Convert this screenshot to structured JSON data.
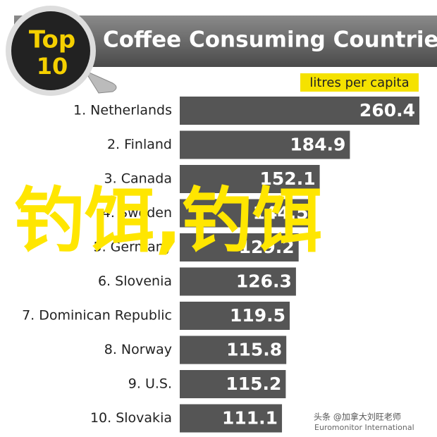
{
  "chart_data": {
    "type": "bar",
    "orientation": "horizontal",
    "title": "Coffee Consuming Countries",
    "logo": {
      "top": "Top",
      "number": "10"
    },
    "unit_label": "litres per capita",
    "categories": [
      "1. Netherlands",
      "2. Finland",
      "3. Canada",
      "4. Sweden",
      "5. Germany",
      "6. Slovenia",
      "7. Dominican Republic",
      "8. Norway",
      "9. U.S.",
      "10. Slovakia"
    ],
    "values": [
      260.4,
      184.9,
      152.1,
      144.5,
      129.2,
      126.3,
      119.5,
      115.8,
      115.2,
      111.1
    ],
    "color": "#555555",
    "source": "Euromonitor International",
    "watermark": "钓饵,钓饵",
    "credit": "头条 @加拿大刘旺老师"
  }
}
